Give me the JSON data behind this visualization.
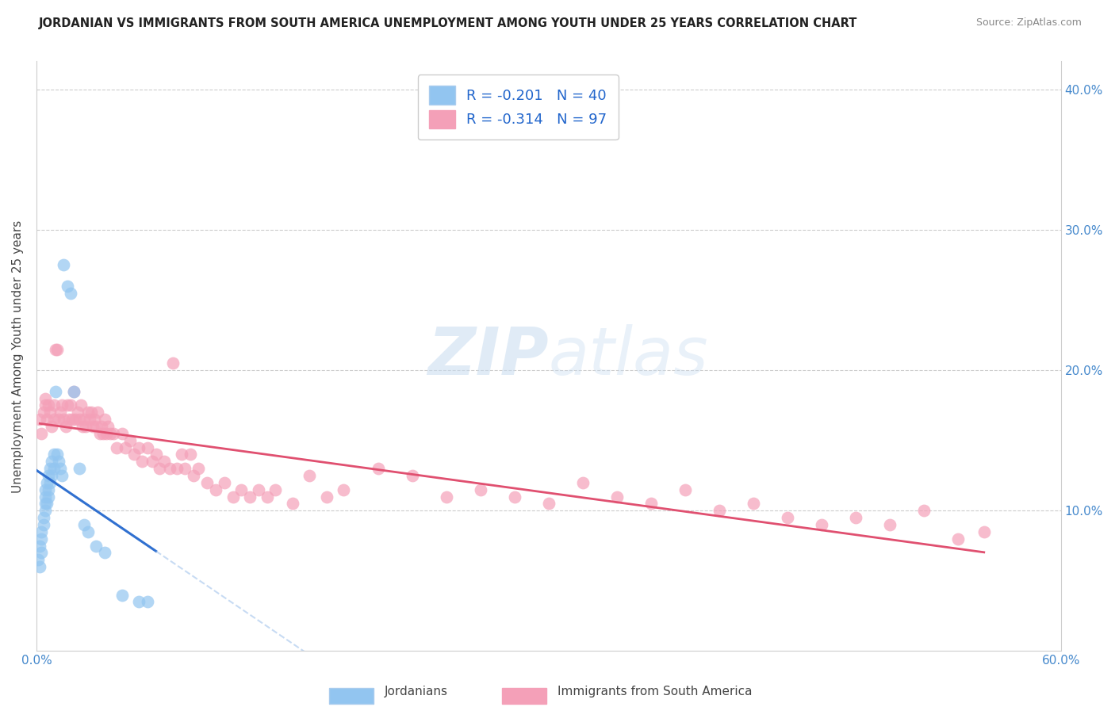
{
  "title": "JORDANIAN VS IMMIGRANTS FROM SOUTH AMERICA UNEMPLOYMENT AMONG YOUTH UNDER 25 YEARS CORRELATION CHART",
  "source": "Source: ZipAtlas.com",
  "ylabel": "Unemployment Among Youth under 25 years",
  "xlim": [
    0.0,
    0.6
  ],
  "ylim": [
    0.0,
    0.42
  ],
  "x_ticks": [
    0.0,
    0.1,
    0.2,
    0.3,
    0.4,
    0.5,
    0.6
  ],
  "x_tick_labels": [
    "0.0%",
    "",
    "",
    "",
    "",
    "",
    "60.0%"
  ],
  "y_ticks_left": [
    0.0,
    0.1,
    0.2,
    0.3,
    0.4
  ],
  "y_tick_labels_left": [
    "",
    "",
    "",
    "",
    ""
  ],
  "y_ticks_right": [
    0.1,
    0.2,
    0.3,
    0.4
  ],
  "y_tick_labels_right": [
    "10.0%",
    "20.0%",
    "30.0%",
    "40.0%"
  ],
  "watermark_zip": "ZIP",
  "watermark_atlas": "atlas",
  "R_jordanian": -0.201,
  "N_jordanian": 40,
  "R_south_america": -0.314,
  "N_south_america": 97,
  "color_jordanian": "#92C5F0",
  "color_south_america": "#F4A0B8",
  "line_color_jordanian": "#3070D0",
  "line_color_south_america": "#E05070",
  "line_color_jordanian_ext": "#90B8E8",
  "legend_label_jordanian": "Jordanians",
  "legend_label_south_america": "Immigrants from South America",
  "jordanian_x": [
    0.001,
    0.002,
    0.002,
    0.003,
    0.003,
    0.003,
    0.004,
    0.004,
    0.005,
    0.005,
    0.005,
    0.005,
    0.006,
    0.006,
    0.007,
    0.007,
    0.007,
    0.008,
    0.008,
    0.009,
    0.009,
    0.01,
    0.01,
    0.011,
    0.012,
    0.013,
    0.014,
    0.015,
    0.016,
    0.018,
    0.02,
    0.022,
    0.025,
    0.028,
    0.03,
    0.035,
    0.04,
    0.05,
    0.06,
    0.065
  ],
  "jordanian_y": [
    0.065,
    0.06,
    0.075,
    0.07,
    0.08,
    0.085,
    0.09,
    0.095,
    0.1,
    0.105,
    0.11,
    0.115,
    0.105,
    0.12,
    0.11,
    0.115,
    0.125,
    0.12,
    0.13,
    0.125,
    0.135,
    0.13,
    0.14,
    0.185,
    0.14,
    0.135,
    0.13,
    0.125,
    0.275,
    0.26,
    0.255,
    0.185,
    0.13,
    0.09,
    0.085,
    0.075,
    0.07,
    0.04,
    0.035,
    0.035
  ],
  "south_america_x": [
    0.002,
    0.003,
    0.004,
    0.005,
    0.005,
    0.006,
    0.007,
    0.008,
    0.009,
    0.01,
    0.01,
    0.011,
    0.012,
    0.013,
    0.014,
    0.015,
    0.016,
    0.017,
    0.018,
    0.019,
    0.02,
    0.021,
    0.022,
    0.023,
    0.024,
    0.025,
    0.026,
    0.027,
    0.028,
    0.029,
    0.03,
    0.031,
    0.032,
    0.033,
    0.034,
    0.035,
    0.036,
    0.037,
    0.038,
    0.039,
    0.04,
    0.041,
    0.042,
    0.043,
    0.045,
    0.047,
    0.05,
    0.052,
    0.055,
    0.057,
    0.06,
    0.062,
    0.065,
    0.068,
    0.07,
    0.072,
    0.075,
    0.078,
    0.08,
    0.082,
    0.085,
    0.087,
    0.09,
    0.092,
    0.095,
    0.1,
    0.105,
    0.11,
    0.115,
    0.12,
    0.125,
    0.13,
    0.135,
    0.14,
    0.15,
    0.16,
    0.17,
    0.18,
    0.2,
    0.22,
    0.24,
    0.26,
    0.28,
    0.3,
    0.32,
    0.34,
    0.36,
    0.38,
    0.4,
    0.42,
    0.44,
    0.46,
    0.48,
    0.5,
    0.52,
    0.54,
    0.555
  ],
  "south_america_y": [
    0.165,
    0.155,
    0.17,
    0.175,
    0.18,
    0.165,
    0.175,
    0.17,
    0.16,
    0.175,
    0.165,
    0.215,
    0.215,
    0.165,
    0.17,
    0.175,
    0.165,
    0.16,
    0.175,
    0.165,
    0.175,
    0.165,
    0.185,
    0.165,
    0.17,
    0.165,
    0.175,
    0.16,
    0.165,
    0.16,
    0.17,
    0.165,
    0.17,
    0.16,
    0.165,
    0.16,
    0.17,
    0.155,
    0.16,
    0.155,
    0.165,
    0.155,
    0.16,
    0.155,
    0.155,
    0.145,
    0.155,
    0.145,
    0.15,
    0.14,
    0.145,
    0.135,
    0.145,
    0.135,
    0.14,
    0.13,
    0.135,
    0.13,
    0.205,
    0.13,
    0.14,
    0.13,
    0.14,
    0.125,
    0.13,
    0.12,
    0.115,
    0.12,
    0.11,
    0.115,
    0.11,
    0.115,
    0.11,
    0.115,
    0.105,
    0.125,
    0.11,
    0.115,
    0.13,
    0.125,
    0.11,
    0.115,
    0.11,
    0.105,
    0.12,
    0.11,
    0.105,
    0.115,
    0.1,
    0.105,
    0.095,
    0.09,
    0.095,
    0.09,
    0.1,
    0.08,
    0.085
  ]
}
